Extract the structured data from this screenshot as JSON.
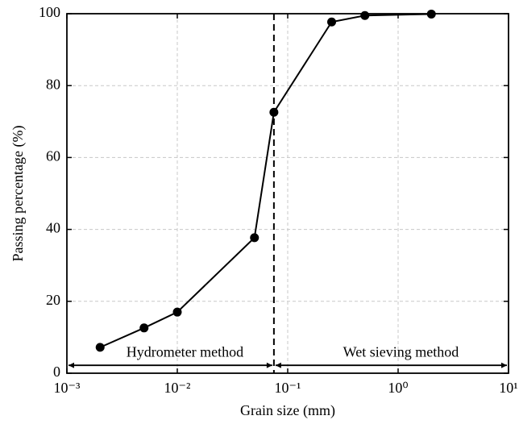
{
  "chart_data": {
    "type": "line",
    "xlabel": "Grain size (mm)",
    "ylabel": "Passing  percentage (%)",
    "x": [
      0.002,
      0.005,
      0.01,
      0.05,
      0.075,
      0.25,
      0.5,
      2
    ],
    "series": [
      {
        "color": "#000000",
        "values": [
          7.2,
          12.6,
          17,
          37.7,
          72.6,
          97.7,
          99.5,
          99.9
        ]
      }
    ],
    "xscale": "log",
    "xlim": [
      0.001,
      10
    ],
    "ylim": [
      0,
      100
    ],
    "xticks": [
      {
        "value": 0.001,
        "label": "10⁻³"
      },
      {
        "value": 0.01,
        "label": "10⁻²"
      },
      {
        "value": 0.1,
        "label": "10⁻¹"
      },
      {
        "value": 1,
        "label": "10⁰"
      },
      {
        "value": 10,
        "label": "10¹"
      }
    ],
    "yticks": [
      0,
      20,
      40,
      60,
      80,
      100
    ],
    "grid": true,
    "divider_x": 0.075,
    "arrow_y": 2.2,
    "annotations": [
      "Hydrometer method",
      "Wet sieving method"
    ]
  }
}
